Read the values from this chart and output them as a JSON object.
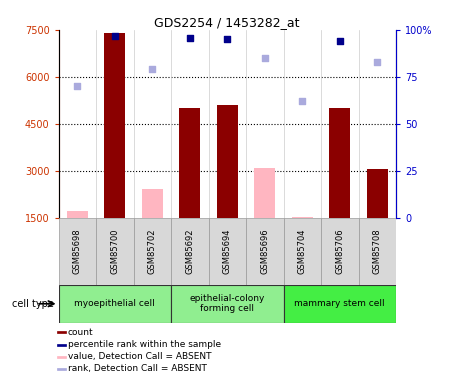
{
  "title": "GDS2254 / 1453282_at",
  "samples": [
    "GSM85698",
    "GSM85700",
    "GSM85702",
    "GSM85692",
    "GSM85694",
    "GSM85696",
    "GSM85704",
    "GSM85706",
    "GSM85708"
  ],
  "cell_groups": [
    {
      "label": "myoepithelial cell",
      "start": 0,
      "end": 3,
      "color": "#90EE90"
    },
    {
      "label": "epithelial-colony\nforming cell",
      "start": 3,
      "end": 6,
      "color": "#90EE90"
    },
    {
      "label": "mammary stem cell",
      "start": 6,
      "end": 9,
      "color": "#44EE44"
    }
  ],
  "ylim_left": [
    1500,
    7500
  ],
  "ylim_right": [
    0,
    100
  ],
  "yticks_left": [
    1500,
    3000,
    4500,
    6000,
    7500
  ],
  "yticks_right": [
    0,
    25,
    50,
    75,
    100
  ],
  "bar_data": [
    {
      "idx": 0,
      "type": "absent_value",
      "value": 1700
    },
    {
      "idx": 1,
      "type": "present_value",
      "value": 7400
    },
    {
      "idx": 2,
      "type": "absent_value",
      "value": 2400
    },
    {
      "idx": 3,
      "type": "present_value",
      "value": 5000
    },
    {
      "idx": 4,
      "type": "present_value",
      "value": 5100
    },
    {
      "idx": 5,
      "type": "absent_value",
      "value": 3100
    },
    {
      "idx": 6,
      "type": "absent_value",
      "value": 1530
    },
    {
      "idx": 7,
      "type": "present_value",
      "value": 5000
    },
    {
      "idx": 8,
      "type": "present_value",
      "value": 3050
    }
  ],
  "scatter_data": [
    {
      "idx": 0,
      "type": "absent_rank",
      "pct": 70
    },
    {
      "idx": 1,
      "type": "present_rank",
      "pct": 97
    },
    {
      "idx": 2,
      "type": "absent_rank",
      "pct": 79
    },
    {
      "idx": 3,
      "type": "present_rank",
      "pct": 96
    },
    {
      "idx": 4,
      "type": "present_rank",
      "pct": 95
    },
    {
      "idx": 5,
      "type": "absent_rank",
      "pct": 85
    },
    {
      "idx": 6,
      "type": "absent_rank",
      "pct": 62
    },
    {
      "idx": 7,
      "type": "present_rank",
      "pct": 94
    },
    {
      "idx": 8,
      "type": "absent_rank",
      "pct": 83
    }
  ],
  "bar_width": 0.55,
  "bar_color_present": "#8B0000",
  "bar_color_absent": "#FFB6C1",
  "scatter_color_present": "#00008B",
  "scatter_color_absent": "#AAAADD",
  "left_axis_color": "#CC3300",
  "right_axis_color": "#0000CC",
  "legend_items": [
    {
      "label": "count",
      "color": "#8B0000"
    },
    {
      "label": "percentile rank within the sample",
      "color": "#00008B"
    },
    {
      "label": "value, Detection Call = ABSENT",
      "color": "#FFB6C1"
    },
    {
      "label": "rank, Detection Call = ABSENT",
      "color": "#AAAADD"
    }
  ]
}
